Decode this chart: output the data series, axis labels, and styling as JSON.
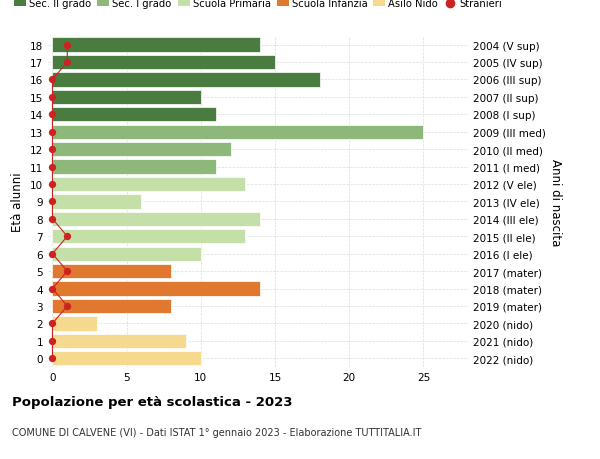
{
  "ages": [
    18,
    17,
    16,
    15,
    14,
    13,
    12,
    11,
    10,
    9,
    8,
    7,
    6,
    5,
    4,
    3,
    2,
    1,
    0
  ],
  "right_labels": [
    "2004 (V sup)",
    "2005 (IV sup)",
    "2006 (III sup)",
    "2007 (II sup)",
    "2008 (I sup)",
    "2009 (III med)",
    "2010 (II med)",
    "2011 (I med)",
    "2012 (V ele)",
    "2013 (IV ele)",
    "2014 (III ele)",
    "2015 (II ele)",
    "2016 (I ele)",
    "2017 (mater)",
    "2018 (mater)",
    "2019 (mater)",
    "2020 (nido)",
    "2021 (nido)",
    "2022 (nido)"
  ],
  "bar_values": [
    14,
    15,
    18,
    10,
    11,
    25,
    12,
    11,
    13,
    6,
    14,
    13,
    10,
    8,
    14,
    8,
    3,
    9,
    10
  ],
  "bar_colors": [
    "#4a7c3f",
    "#4a7c3f",
    "#4a7c3f",
    "#4a7c3f",
    "#4a7c3f",
    "#8db87a",
    "#8db87a",
    "#8db87a",
    "#c5dfa8",
    "#c5dfa8",
    "#c5dfa8",
    "#c5dfa8",
    "#c5dfa8",
    "#e07830",
    "#e07830",
    "#e07830",
    "#f5d98c",
    "#f5d98c",
    "#f5d98c"
  ],
  "stranieri_x": [
    1,
    1,
    0,
    0,
    0,
    0,
    0,
    0,
    0,
    0,
    0,
    1,
    0,
    1,
    0,
    1,
    0,
    0,
    0
  ],
  "legend_labels": [
    "Sec. II grado",
    "Sec. I grado",
    "Scuola Primaria",
    "Scuola Infanzia",
    "Asilo Nido",
    "Stranieri"
  ],
  "legend_colors": [
    "#4a7c3f",
    "#8db87a",
    "#c5dfa8",
    "#e07830",
    "#f5d98c",
    "#cc2222"
  ],
  "title": "Popolazione per età scolastica - 2023",
  "subtitle": "COMUNE DI CALVENE (VI) - Dati ISTAT 1° gennaio 2023 - Elaborazione TUTTITALIA.IT",
  "ylabel": "Età alunni",
  "ylabel_right": "Anni di nascita",
  "xlim": [
    -0.3,
    28
  ],
  "xticks": [
    0,
    5,
    10,
    15,
    20,
    25
  ],
  "background_color": "#ffffff",
  "grid_color": "#cccccc",
  "stranieri_color": "#cc2222",
  "bar_height": 0.82
}
